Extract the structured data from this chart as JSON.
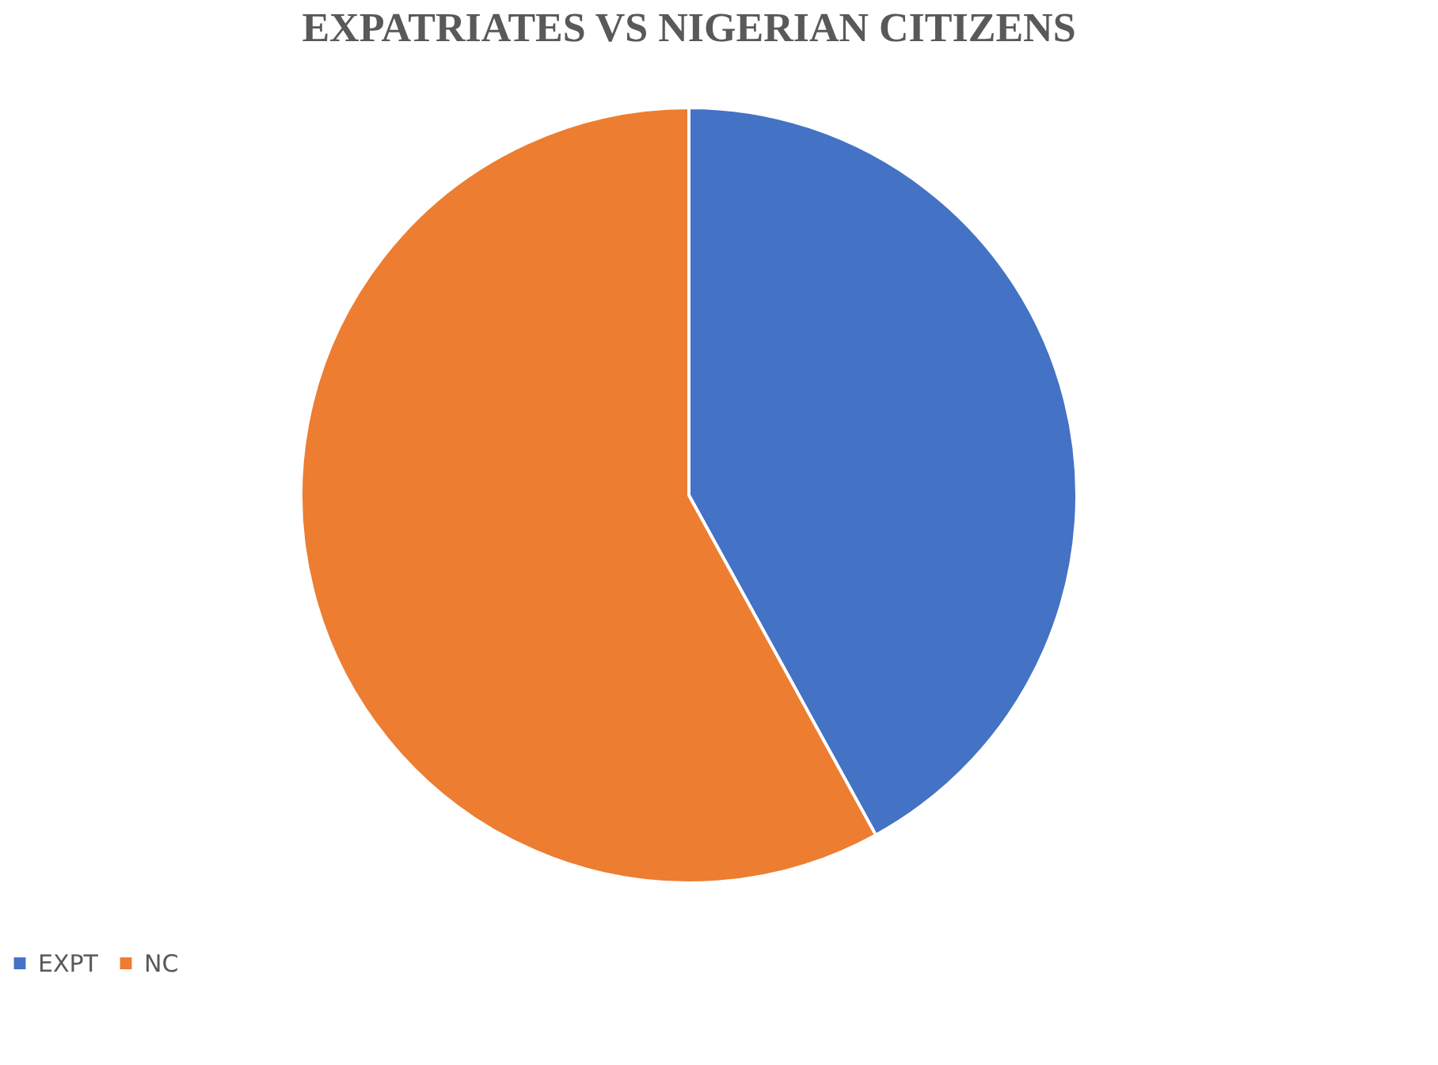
{
  "chart_data": {
    "type": "pie",
    "title": "EXPATRIATES VS NIGERIAN CITIZENS",
    "categories": [
      "EXPT",
      "NC"
    ],
    "values": [
      42,
      58
    ],
    "colors": [
      "#4472c4",
      "#ed7d31"
    ],
    "legend": "bottom"
  }
}
